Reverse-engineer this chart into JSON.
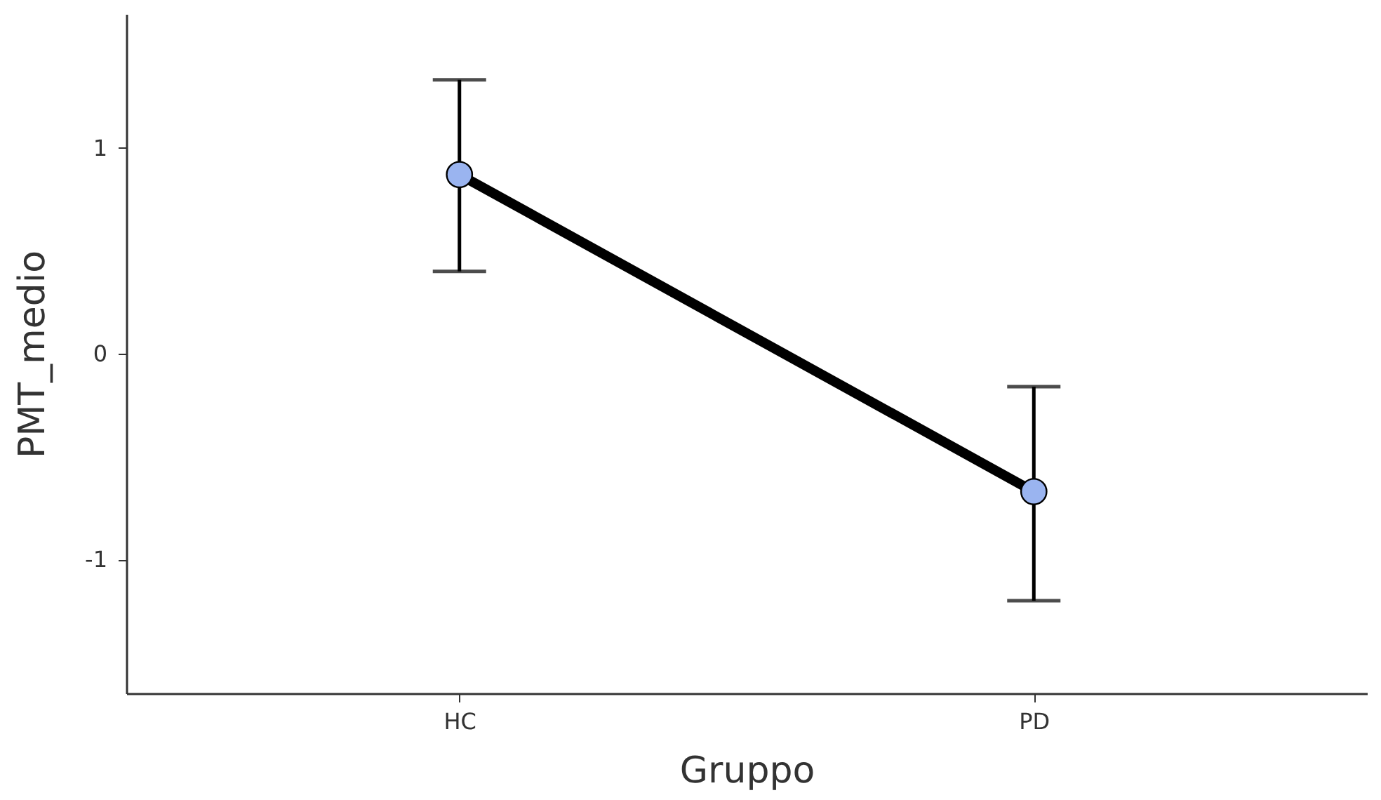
{
  "chart_data": {
    "type": "line",
    "xlabel": "Gruppo",
    "ylabel": "PMT_medio",
    "categories": [
      "HC",
      "PD"
    ],
    "ylim": [
      -1.65,
      1.65
    ],
    "yticks": [
      -1,
      0,
      1
    ],
    "grid": false,
    "series": [
      {
        "color": "#000000",
        "marker": "none",
        "values": [
          0.87,
          -0.67
        ]
      },
      {
        "type": "scatter",
        "color": "#9ab4f0",
        "marker": "circle",
        "values": [
          0.87,
          -0.67
        ],
        "errors": [
          [
            0.4,
            1.33
          ],
          [
            -1.2,
            -0.16
          ]
        ]
      }
    ]
  }
}
